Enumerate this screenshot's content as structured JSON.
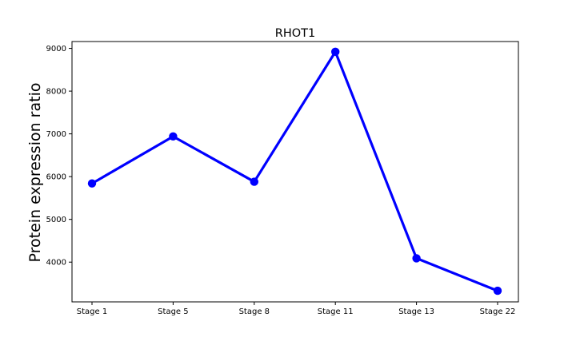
{
  "chart_data": {
    "type": "line",
    "title": "RHOT1",
    "xlabel": "",
    "ylabel": "Protein expression ratio",
    "categories": [
      "Stage 1",
      "Stage 5",
      "Stage 8",
      "Stage 11",
      "Stage 13",
      "Stage 22"
    ],
    "series": [
      {
        "values": [
          5840,
          6940,
          5880,
          8920,
          4090,
          3330
        ]
      }
    ],
    "ylim": [
      3070,
      9160
    ],
    "yticks": [
      4000,
      5000,
      6000,
      7000,
      8000,
      9000
    ],
    "grid": false,
    "line_color": "#0000ff",
    "marker_color": "#0000ff"
  }
}
